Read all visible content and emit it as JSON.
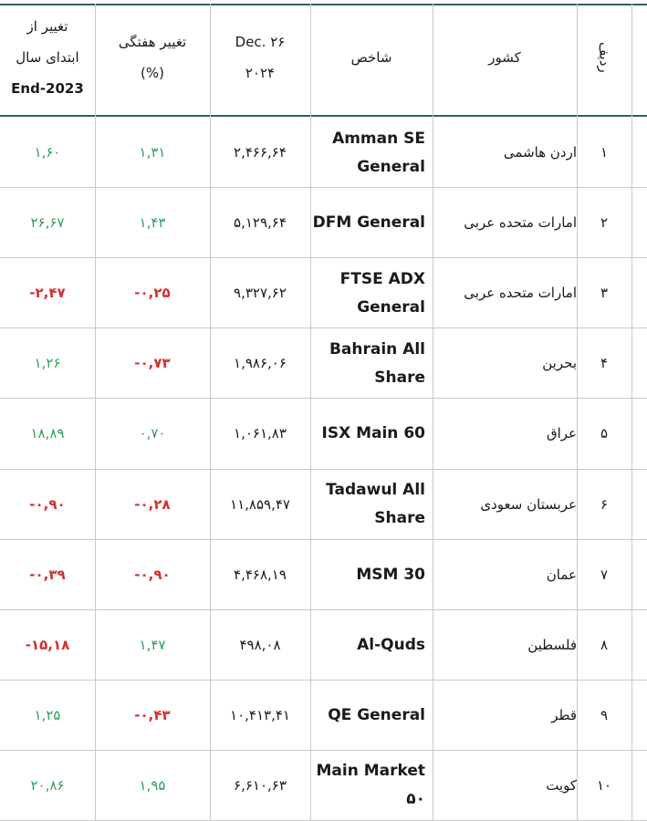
{
  "header": {
    "rank": "ردیف",
    "country": "کشور",
    "index": "شاخص",
    "date_line1": "Dec. ۲۶",
    "date_line2": "۲۰۲۴",
    "weekly_line1": "تغییر هفتگی",
    "weekly_line2": "(%)",
    "ytd_line1": "تغییر از",
    "ytd_line2": "ابتدای سال",
    "ytd_line3": "End-2023"
  },
  "rows": [
    {
      "rank": "۱",
      "country": "اردن هاشمی",
      "index_l1": "Amman SE",
      "index_l2": "General",
      "value": "۲,۴۶۶,۶۴",
      "weekly": "۱,۳۱",
      "weekly_dir": "up",
      "ytd": "۱,۶۰",
      "ytd_dir": "up"
    },
    {
      "rank": "۲",
      "country": "امارات متحده عربی",
      "index_l1": "DFM General",
      "index_l2": "",
      "value": "۵,۱۲۹,۶۴",
      "weekly": "۱,۴۳",
      "weekly_dir": "up",
      "ytd": "۲۶,۶۷",
      "ytd_dir": "up"
    },
    {
      "rank": "۳",
      "country": "امارات متحده عربی",
      "index_l1": "FTSE ADX",
      "index_l2": "General",
      "value": "۹,۳۲۷,۶۲",
      "weekly": "-۰,۲۵",
      "weekly_dir": "down",
      "ytd": "-۲,۴۷",
      "ytd_dir": "down"
    },
    {
      "rank": "۴",
      "country": "بحرین",
      "index_l1": "Bahrain All",
      "index_l2": "Share",
      "value": "۱,۹۸۶,۰۶",
      "weekly": "-۰,۷۳",
      "weekly_dir": "down",
      "ytd": "۱,۲۶",
      "ytd_dir": "up"
    },
    {
      "rank": "۵",
      "country": "عراق",
      "index_l1": "ISX Main 60",
      "index_l2": "",
      "value": "۱,۰۶۱,۸۳",
      "weekly": "۰,۷۰",
      "weekly_dir": "up",
      "ytd": "۱۸,۸۹",
      "ytd_dir": "up"
    },
    {
      "rank": "۶",
      "country": "عربستان سعودی",
      "index_l1": "Tadawul All",
      "index_l2": "Share",
      "value": "۱۱,۸۵۹,۴۷",
      "weekly": "-۰,۲۸",
      "weekly_dir": "down",
      "ytd": "-۰,۹۰",
      "ytd_dir": "down"
    },
    {
      "rank": "۷",
      "country": "عمان",
      "index_l1": "MSM 30",
      "index_l2": "",
      "value": "۴,۴۶۸,۱۹",
      "weekly": "-۰,۹۰",
      "weekly_dir": "down",
      "ytd": "-۰,۳۹",
      "ytd_dir": "down"
    },
    {
      "rank": "۸",
      "country": "فلسطین",
      "index_l1": "Al-Quds",
      "index_l2": "",
      "value": "۴۹۸,۰۸",
      "weekly": "۱,۴۷",
      "weekly_dir": "up",
      "ytd": "-۱۵,۱۸",
      "ytd_dir": "down"
    },
    {
      "rank": "۹",
      "country": "قطر",
      "index_l1": "QE General",
      "index_l2": "",
      "value": "۱۰,۴۱۳,۴۱",
      "weekly": "-۰,۴۳",
      "weekly_dir": "down",
      "ytd": "۱,۲۵",
      "ytd_dir": "up"
    },
    {
      "rank": "۱۰",
      "country": "کویت",
      "index_l1": "Main Market",
      "index_l2": "۵۰",
      "value": "۶,۶۱۰,۶۳",
      "weekly": "۱,۹۵",
      "weekly_dir": "up",
      "ytd": "۲۰,۸۶",
      "ytd_dir": "up"
    }
  ],
  "colors": {
    "up": "#2f9e5b",
    "down": "#d32f2f",
    "header_rule": "#2f5f6b",
    "grid": "#c9c9c9"
  }
}
